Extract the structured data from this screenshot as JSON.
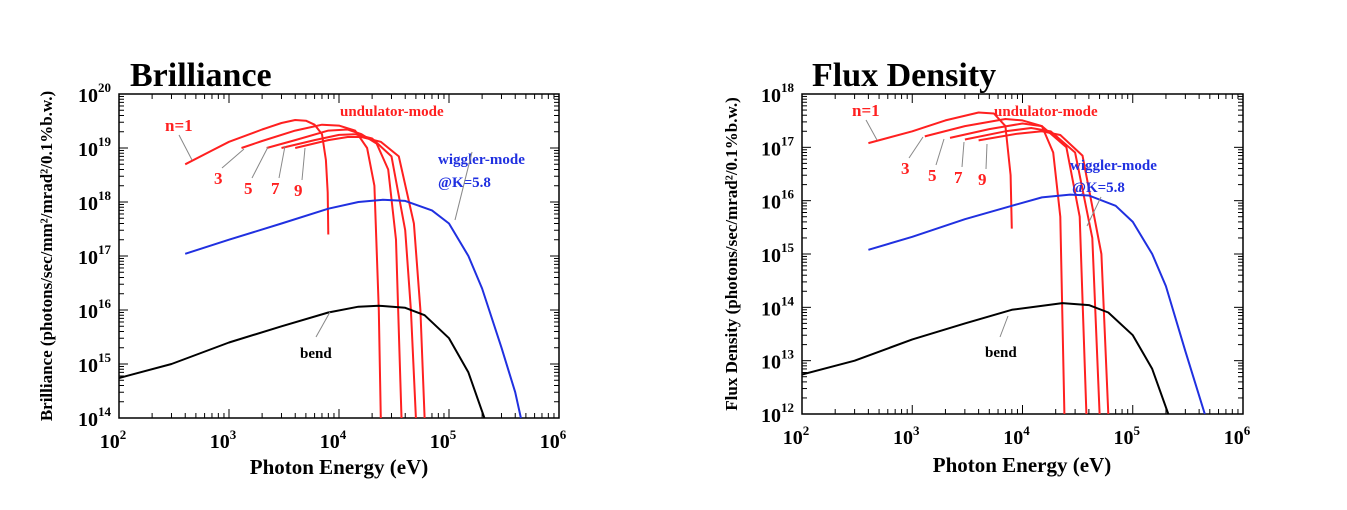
{
  "chart_data": [
    {
      "type": "line",
      "title": "Brilliance",
      "xlabel": "Photon Energy (eV)",
      "ylabel": "Brilliance (photons/sec/mm²/mrad²/0.1%b.w.)",
      "xscale": "log",
      "yscale": "log",
      "xlim": [
        100,
        1000000
      ],
      "ylim": [
        100000000000000.0,
        1e+20
      ],
      "xticks": [
        {
          "base": "10",
          "exp": "2"
        },
        {
          "base": "10",
          "exp": "3"
        },
        {
          "base": "10",
          "exp": "4"
        },
        {
          "base": "10",
          "exp": "5"
        },
        {
          "base": "10",
          "exp": "6"
        }
      ],
      "yticks": [
        {
          "base": "10",
          "exp": "14"
        },
        {
          "base": "10",
          "exp": "15"
        },
        {
          "base": "10",
          "exp": "16"
        },
        {
          "base": "10",
          "exp": "17"
        },
        {
          "base": "10",
          "exp": "18"
        },
        {
          "base": "10",
          "exp": "19"
        },
        {
          "base": "10",
          "exp": "20"
        }
      ],
      "grid": false,
      "annotations": {
        "undulator": "undulator-mode",
        "wiggler": "wiggler-mode",
        "wiggler_k": "@K=5.8",
        "bend": "bend",
        "n1": "n=1",
        "n3": "3",
        "n5": "5",
        "n7": "7",
        "n9": "9"
      },
      "series": [
        {
          "name": "n=1",
          "group": "undulator",
          "color": "#ff2020",
          "points": [
            [
              400,
              5e+18
            ],
            [
              700,
              9e+18
            ],
            [
              1000,
              1.3e+19
            ],
            [
              2000,
              2.2e+19
            ],
            [
              3000,
              2.9e+19
            ],
            [
              4000,
              3.3e+19
            ],
            [
              5000,
              3.2e+19
            ],
            [
              6000,
              2.7e+19
            ],
            [
              7000,
              1.8e+19
            ],
            [
              7600,
              6e+18
            ],
            [
              7900,
              1.5e+18
            ],
            [
              8000,
              2.5e+17
            ]
          ]
        },
        {
          "name": "3",
          "group": "undulator",
          "color": "#ff2020",
          "points": [
            [
              1300,
              1e+19
            ],
            [
              2000,
              1.35e+19
            ],
            [
              4000,
              2.1e+19
            ],
            [
              7000,
              2.7e+19
            ],
            [
              10000,
              2.6e+19
            ],
            [
              14000,
              2.1e+19
            ],
            [
              18000,
              1e+19
            ],
            [
              21000,
              2e+18
            ],
            [
              23000,
              1e+16
            ],
            [
              24000,
              100000000000000.0
            ]
          ]
        },
        {
          "name": "5",
          "group": "undulator",
          "color": "#ff2020",
          "points": [
            [
              2200,
              1e+19
            ],
            [
              4000,
              1.4e+19
            ],
            [
              8000,
              2.1e+19
            ],
            [
              12000,
              2.2e+19
            ],
            [
              16000,
              1.8e+19
            ],
            [
              22000,
              1.2e+19
            ],
            [
              28000,
              4e+18
            ],
            [
              33000,
              2e+17
            ],
            [
              37000,
              100000000000000.0
            ]
          ]
        },
        {
          "name": "7",
          "group": "undulator",
          "color": "#ff2020",
          "points": [
            [
              3000,
              1e+19
            ],
            [
              6000,
              1.4e+19
            ],
            [
              10000,
              1.75e+19
            ],
            [
              14000,
              1.8e+19
            ],
            [
              20000,
              1.5e+19
            ],
            [
              30000,
              7e+18
            ],
            [
              40000,
              3e+17
            ],
            [
              45000,
              1e+16
            ],
            [
              50000,
              100000000000000.0
            ]
          ]
        },
        {
          "name": "9",
          "group": "undulator",
          "color": "#ff2020",
          "points": [
            [
              4000,
              1e+19
            ],
            [
              8000,
              1.4e+19
            ],
            [
              12000,
              1.6e+19
            ],
            [
              16000,
              1.6e+19
            ],
            [
              24000,
              1.3e+19
            ],
            [
              35000,
              7e+18
            ],
            [
              48000,
              4e+17
            ],
            [
              55000,
              1e+16
            ],
            [
              60000,
              100000000000000.0
            ]
          ]
        },
        {
          "name": "wiggler-mode",
          "group": "wiggler",
          "color": "#2030e0",
          "points": [
            [
              400,
              1.1e+17
            ],
            [
              1000,
              2e+17
            ],
            [
              3000,
              4e+17
            ],
            [
              8000,
              7.5e+17
            ],
            [
              15000,
              1e+18
            ],
            [
              25000,
              1.1e+18
            ],
            [
              40000,
              1.05e+18
            ],
            [
              70000,
              7e+17
            ],
            [
              100000,
              4e+17
            ],
            [
              150000,
              1e+17
            ],
            [
              200000,
              2.5e+16
            ],
            [
              300000,
              2000000000000000.0
            ],
            [
              400000,
              300000000000000.0
            ],
            [
              450000,
              100000000000000.0
            ]
          ]
        },
        {
          "name": "bend",
          "group": "bend",
          "color": "#000000",
          "points": [
            [
              100,
              550000000000000.0
            ],
            [
              300,
              1000000000000000.0
            ],
            [
              1000,
              2500000000000000.0
            ],
            [
              3000,
              5000000000000000.0
            ],
            [
              8000,
              9000000000000000.0
            ],
            [
              15000,
              1.15e+16
            ],
            [
              23000,
              1.2e+16
            ],
            [
              40000,
              1.1e+16
            ],
            [
              60000,
              8000000000000000.0
            ],
            [
              100000,
              3000000000000000.0
            ],
            [
              150000,
              700000000000000.0
            ],
            [
              210000,
              100000000000000.0
            ]
          ]
        }
      ]
    },
    {
      "type": "line",
      "title": "Flux Density",
      "xlabel": "Photon Energy (eV)",
      "ylabel": "Flux Density (photons/sec/mrad²/0.1%b.w.)",
      "xscale": "log",
      "yscale": "log",
      "xlim": [
        100,
        1000000
      ],
      "ylim": [
        1000000000000.0,
        1e+18
      ],
      "xticks": [
        {
          "base": "10",
          "exp": "2"
        },
        {
          "base": "10",
          "exp": "3"
        },
        {
          "base": "10",
          "exp": "4"
        },
        {
          "base": "10",
          "exp": "5"
        },
        {
          "base": "10",
          "exp": "6"
        }
      ],
      "yticks": [
        {
          "base": "10",
          "exp": "12"
        },
        {
          "base": "10",
          "exp": "13"
        },
        {
          "base": "10",
          "exp": "14"
        },
        {
          "base": "10",
          "exp": "15"
        },
        {
          "base": "10",
          "exp": "16"
        },
        {
          "base": "10",
          "exp": "17"
        },
        {
          "base": "10",
          "exp": "18"
        }
      ],
      "grid": false,
      "annotations": {
        "undulator": "undulator-mode",
        "wiggler": "wiggler-mode",
        "wiggler_k": "@K=5.8",
        "bend": "bend",
        "n1": "n=1",
        "n3": "3",
        "n5": "5",
        "n7": "7",
        "n9": "9"
      },
      "series": [
        {
          "name": "n=1",
          "group": "undulator",
          "color": "#ff2020",
          "points": [
            [
              400,
              1.2e+17
            ],
            [
              1000,
              2e+17
            ],
            [
              2000,
              3.2e+17
            ],
            [
              4000,
              4.5e+17
            ],
            [
              5500,
              4.3e+17
            ],
            [
              7000,
              2.5e+17
            ],
            [
              7800,
              3e+16
            ],
            [
              8000,
              3000000000000000.0
            ]
          ]
        },
        {
          "name": "3",
          "group": "undulator",
          "color": "#ff2020",
          "points": [
            [
              1300,
              1.6e+17
            ],
            [
              3000,
              2.5e+17
            ],
            [
              7000,
              3.4e+17
            ],
            [
              10000,
              3.2e+17
            ],
            [
              15000,
              2.5e+17
            ],
            [
              19000,
              8e+16
            ],
            [
              22000,
              5000000000000000.0
            ],
            [
              24000,
              1000000000000.0
            ]
          ]
        },
        {
          "name": "5",
          "group": "undulator",
          "color": "#ff2020",
          "points": [
            [
              2200,
              1.5e+17
            ],
            [
              5000,
              2.2e+17
            ],
            [
              10000,
              2.8e+17
            ],
            [
              15000,
              2.5e+17
            ],
            [
              25000,
              1e+17
            ],
            [
              33000,
              5000000000000000.0
            ],
            [
              38000,
              1000000000000.0
            ]
          ]
        },
        {
          "name": "7",
          "group": "undulator",
          "color": "#ff2020",
          "points": [
            [
              3000,
              1.4e+17
            ],
            [
              7000,
              2e+17
            ],
            [
              12000,
              2.3e+17
            ],
            [
              18000,
              2e+17
            ],
            [
              30000,
              8e+16
            ],
            [
              43000,
              2000000000000000.0
            ],
            [
              50000,
              1000000000000.0
            ]
          ]
        },
        {
          "name": "9",
          "group": "undulator",
          "color": "#ff2020",
          "points": [
            [
              4000,
              1.35e+17
            ],
            [
              9000,
              1.8e+17
            ],
            [
              15000,
              2e+17
            ],
            [
              22000,
              1.7e+17
            ],
            [
              35000,
              7e+16
            ],
            [
              52000,
              1000000000000000.0
            ],
            [
              60000,
              1000000000000.0
            ]
          ]
        },
        {
          "name": "wiggler-mode",
          "group": "wiggler",
          "color": "#2030e0",
          "points": [
            [
              400,
              1200000000000000.0
            ],
            [
              1000,
              2100000000000000.0
            ],
            [
              3000,
              4500000000000000.0
            ],
            [
              8000,
              8000000000000000.0
            ],
            [
              15000,
              1.15e+16
            ],
            [
              27000,
              1.3e+16
            ],
            [
              40000,
              1.25e+16
            ],
            [
              70000,
              8000000000000000.0
            ],
            [
              100000,
              4000000000000000.0
            ],
            [
              150000,
              1000000000000000.0
            ],
            [
              200000,
              250000000000000.0
            ],
            [
              300000,
              15000000000000.0
            ],
            [
              450000,
              1000000000000.0
            ]
          ]
        },
        {
          "name": "bend",
          "group": "bend",
          "color": "#000000",
          "points": [
            [
              100,
              5500000000000.0
            ],
            [
              300,
              10000000000000.0
            ],
            [
              1000,
              25000000000000.0
            ],
            [
              3000,
              50000000000000.0
            ],
            [
              8000,
              90000000000000.0
            ],
            [
              23000,
              120000000000000.0
            ],
            [
              40000,
              110000000000000.0
            ],
            [
              60000,
              80000000000000.0
            ],
            [
              100000,
              30000000000000.0
            ],
            [
              150000,
              7000000000000.0
            ],
            [
              210000,
              1000000000000.0
            ]
          ]
        }
      ]
    }
  ]
}
